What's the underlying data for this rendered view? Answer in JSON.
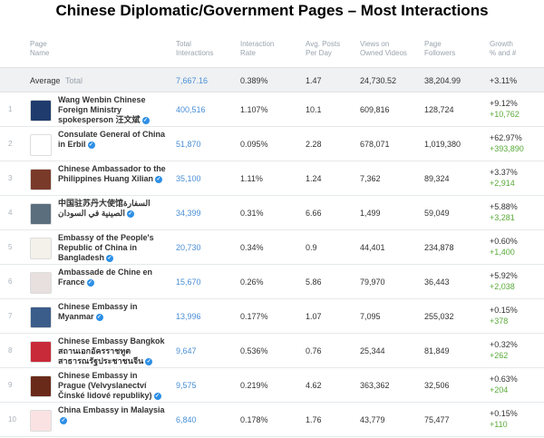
{
  "title": "Chinese Diplomatic/Government Pages – Most Interactions",
  "headers": {
    "page_name": [
      "Page",
      "Name"
    ],
    "total_interactions": [
      "Total",
      "Interactions"
    ],
    "interaction_rate": [
      "Interaction",
      "Rate"
    ],
    "avg_posts": [
      "Avg. Posts",
      "Per Day"
    ],
    "views": [
      "Views on",
      "Owned Videos"
    ],
    "followers": [
      "Page",
      "Followers"
    ],
    "growth": [
      "Growth",
      "% and #"
    ]
  },
  "average": {
    "label": "Average",
    "sublabel": "Total",
    "interactions": "7,667.16",
    "rate": "0.389%",
    "posts": "1.47",
    "views": "24,730.52",
    "followers": "38,204.99",
    "growth": "+3.11%"
  },
  "rows": [
    {
      "index": "1",
      "name": "Wang Wenbin Chinese Foreign Ministry spokesperson 汪文斌",
      "interactions": "400,516",
      "rate": "1.107%",
      "posts": "10.1",
      "views": "609,816",
      "followers": "128,724",
      "growth_pct": "+9.12%",
      "growth_num": "+10,762"
    },
    {
      "index": "2",
      "name": "Consulate General of China in Erbil",
      "interactions": "51,870",
      "rate": "0.095%",
      "posts": "2.28",
      "views": "678,071",
      "followers": "1,019,380",
      "growth_pct": "+62.97%",
      "growth_num": "+393,890"
    },
    {
      "index": "3",
      "name": "Chinese Ambassador to the Philippines Huang Xilian",
      "interactions": "35,100",
      "rate": "1.11%",
      "posts": "1.24",
      "views": "7,362",
      "followers": "89,324",
      "growth_pct": "+3.37%",
      "growth_num": "+2,914"
    },
    {
      "index": "4",
      "name": "中国驻苏丹大使馆السفارة الصينية في السودان",
      "interactions": "34,399",
      "rate": "0.31%",
      "posts": "6.66",
      "views": "1,499",
      "followers": "59,049",
      "growth_pct": "+5.88%",
      "growth_num": "+3,281"
    },
    {
      "index": "5",
      "name": "Embassy of the People's Republic of China in Bangladesh",
      "interactions": "20,730",
      "rate": "0.34%",
      "posts": "0.9",
      "views": "44,401",
      "followers": "234,878",
      "growth_pct": "+0.60%",
      "growth_num": "+1,400"
    },
    {
      "index": "6",
      "name": "Ambassade de Chine en France",
      "interactions": "15,670",
      "rate": "0.26%",
      "posts": "5.86",
      "views": "79,970",
      "followers": "36,443",
      "growth_pct": "+5.92%",
      "growth_num": "+2,038"
    },
    {
      "index": "7",
      "name": "Chinese Embassy in Myanmar",
      "interactions": "13,996",
      "rate": "0.177%",
      "posts": "1.07",
      "views": "7,095",
      "followers": "255,032",
      "growth_pct": "+0.15%",
      "growth_num": "+378"
    },
    {
      "index": "8",
      "name": "Chinese Embassy Bangkok สถานเอกอัครราชทูตสาธารณรัฐประชาชนจีน",
      "interactions": "9,647",
      "rate": "0.536%",
      "posts": "0.76",
      "views": "25,344",
      "followers": "81,849",
      "growth_pct": "+0.32%",
      "growth_num": "+262"
    },
    {
      "index": "9",
      "name": "Chinese Embassy in Prague (Velvyslanectví Čínské lidové republiky)",
      "interactions": "9,575",
      "rate": "0.219%",
      "posts": "4.62",
      "views": "363,362",
      "followers": "32,506",
      "growth_pct": "+0.63%",
      "growth_num": "+204"
    },
    {
      "index": "10",
      "name": "China Embassy in Malaysia",
      "interactions": "6,840",
      "rate": "0.178%",
      "posts": "1.76",
      "views": "43,779",
      "followers": "75,477",
      "growth_pct": "+0.15%",
      "growth_num": "+110"
    }
  ],
  "colors": {
    "accent": "#4a8fd6",
    "growth": "#5aab3b",
    "thumbs": [
      "#1f3b6d",
      "#ffffff",
      "#7a3a2a",
      "#5a6e7e",
      "#f4f1ea",
      "#e7e0de",
      "#3b5d8a",
      "#c92a3a",
      "#6a2a1a",
      "#fbe2e2"
    ]
  }
}
